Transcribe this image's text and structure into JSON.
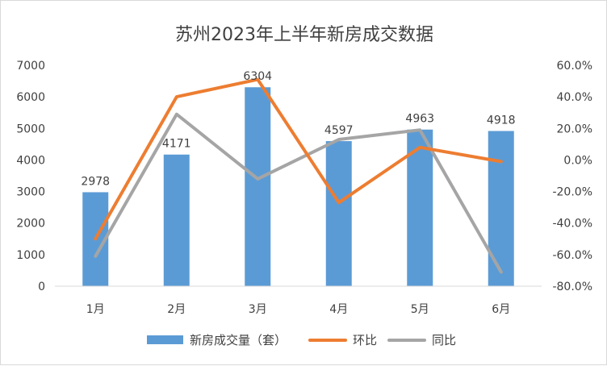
{
  "chart_data": {
    "type": "bar",
    "title": "苏州2023年上半年新房成交数据",
    "categories": [
      "1月",
      "2月",
      "3月",
      "4月",
      "5月",
      "6月"
    ],
    "series": [
      {
        "name": "新房成交量（套）",
        "type": "bar",
        "axis": "left",
        "color": "#5b9bd5",
        "values": [
          2978,
          4171,
          6304,
          4597,
          4963,
          4918
        ]
      },
      {
        "name": "环比",
        "type": "line",
        "axis": "right",
        "color": "#ed7d31",
        "values": [
          -50,
          40,
          51,
          -27,
          8,
          -1
        ]
      },
      {
        "name": "同比",
        "type": "line",
        "axis": "right",
        "color": "#a5a5a5",
        "values": [
          -61,
          29,
          -12,
          13,
          19,
          -71
        ]
      }
    ],
    "y_left": {
      "ylim": [
        0,
        7000
      ],
      "ticks": [
        "0",
        "1000",
        "2000",
        "3000",
        "4000",
        "5000",
        "6000",
        "7000"
      ]
    },
    "y_right": {
      "ylim": [
        -80,
        60
      ],
      "ticks": [
        "-80.0%",
        "-60.0%",
        "-40.0%",
        "-20.0%",
        "0.0%",
        "20.0%",
        "40.0%",
        "60.0%"
      ]
    },
    "data_labels": [
      "2978",
      "4171",
      "6304",
      "4597",
      "4963",
      "4918"
    ],
    "legend_position": "bottom",
    "grid": false
  }
}
